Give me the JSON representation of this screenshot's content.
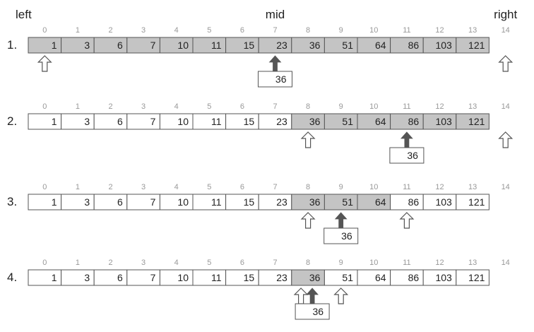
{
  "header": {
    "left_label": "left",
    "mid_label": "mid",
    "right_label": "right"
  },
  "array": {
    "values": [
      1,
      3,
      6,
      7,
      10,
      11,
      15,
      23,
      36,
      51,
      64,
      86,
      103,
      121
    ],
    "indices": [
      0,
      1,
      2,
      3,
      4,
      5,
      6,
      7,
      8,
      9,
      10,
      11,
      12,
      13,
      14
    ]
  },
  "target": "36",
  "steps": [
    {
      "label": "1.",
      "shaded_range": [
        0,
        13
      ],
      "pointers": [
        {
          "type": "left",
          "index": 0
        },
        {
          "type": "right",
          "index": 14
        },
        {
          "type": "mid",
          "index": 7
        }
      ]
    },
    {
      "label": "2.",
      "shaded_range": [
        8,
        13
      ],
      "pointers": [
        {
          "type": "left",
          "index": 8
        },
        {
          "type": "right",
          "index": 14
        },
        {
          "type": "mid",
          "index": 11
        }
      ]
    },
    {
      "label": "3.",
      "shaded_range": [
        8,
        10
      ],
      "pointers": [
        {
          "type": "left",
          "index": 8
        },
        {
          "type": "right",
          "index": 11
        },
        {
          "type": "mid",
          "index": 9
        }
      ]
    },
    {
      "label": "4.",
      "shaded_range": [
        8,
        8
      ],
      "pointers": [
        {
          "type": "left",
          "index": 8
        },
        {
          "type": "right",
          "index": 9
        },
        {
          "type": "mid",
          "index": 8
        }
      ]
    }
  ],
  "colors": {
    "shade": "#c4c4c4",
    "border": "#555555",
    "index_text": "#999999",
    "text": "#222222",
    "mid_arrow": "#555555",
    "open_arrow_stroke": "#555555"
  }
}
